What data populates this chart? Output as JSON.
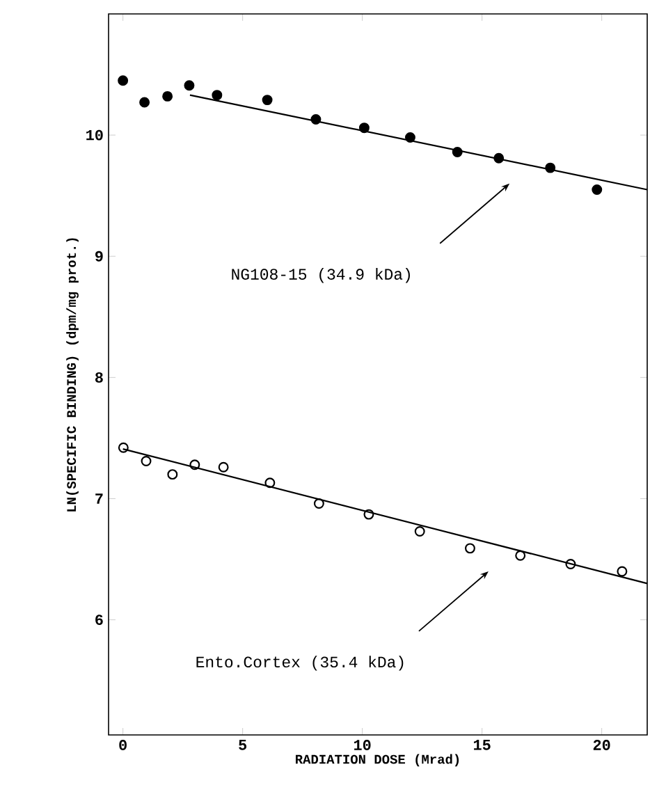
{
  "chart_data": {
    "type": "scatter",
    "xlabel": "RADIATION DOSE (Mrad)",
    "ylabel": "LN(SPECIFIC BINDING) (dpm/mg prot.)",
    "xlim": [
      -0.6,
      21.9
    ],
    "ylim": [
      5.05,
      11.0
    ],
    "xticks": [
      0,
      5,
      10,
      15,
      20
    ],
    "yticks": [
      6,
      7,
      8,
      9,
      10
    ],
    "grid": false,
    "series": [
      {
        "color": "#000000",
        "marker": "circle",
        "x": [
          0,
          0.9,
          1.86,
          2.77,
          3.93,
          6.03,
          8.06,
          10.08,
          12.0,
          13.97,
          15.7,
          17.85,
          19.8
        ],
        "values": [
          10.45,
          10.27,
          10.32,
          10.41,
          10.33,
          10.29,
          10.13,
          10.06,
          9.98,
          9.86,
          9.81,
          9.73,
          9.55
        ]
      },
      {
        "type": "line",
        "color": "#000000",
        "marker": "none",
        "x": [
          2.8,
          21.9
        ],
        "values": [
          10.33,
          9.55
        ]
      },
      {
        "color": "#000000",
        "marker": "circle open",
        "x": [
          0.02,
          0.97,
          2.07,
          3.0,
          4.2,
          6.14,
          8.19,
          10.27,
          12.4,
          14.5,
          16.6,
          18.7,
          20.85
        ],
        "values": [
          7.42,
          7.31,
          7.2,
          7.28,
          7.26,
          7.13,
          6.96,
          6.87,
          6.73,
          6.59,
          6.53,
          6.46,
          6.4
        ]
      },
      {
        "type": "line",
        "color": "#000000",
        "marker": "none",
        "x": [
          0,
          21.9
        ],
        "values": [
          7.41,
          6.3
        ]
      }
    ],
    "annotations": [
      "NG108-15 (34.9 kDa)",
      "Ento.Cortex (35.4 kDa)"
    ]
  }
}
